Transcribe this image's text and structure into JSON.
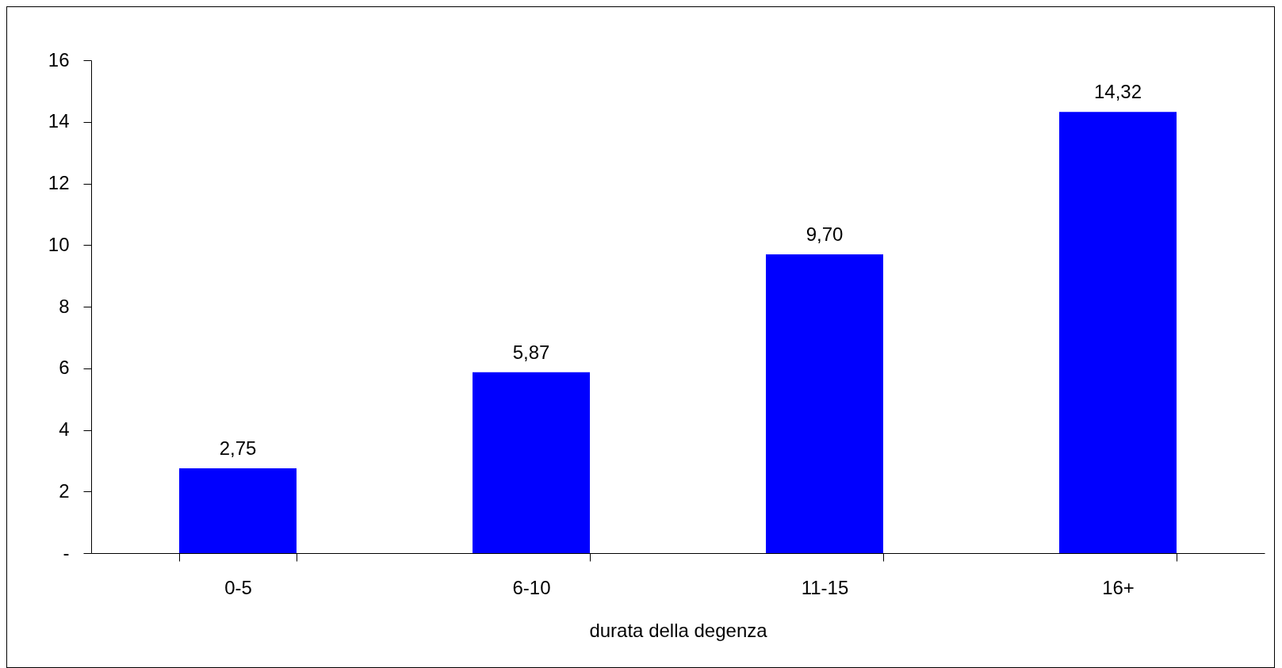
{
  "chart_data": {
    "type": "bar",
    "xlabel": "durata della degenza",
    "categories": [
      "0-5",
      "6-10",
      "11-15",
      "16+"
    ],
    "values": [
      2.75,
      5.87,
      9.7,
      14.32
    ],
    "value_labels": [
      "2,75",
      "5,87",
      "9,70",
      "14,32"
    ],
    "color": "#0000ff",
    "ylim": [
      0,
      16
    ],
    "yticks": [
      {
        "value": 0,
        "label": "-"
      },
      2,
      4,
      6,
      8,
      10,
      12,
      14,
      16
    ],
    "grid": false
  }
}
